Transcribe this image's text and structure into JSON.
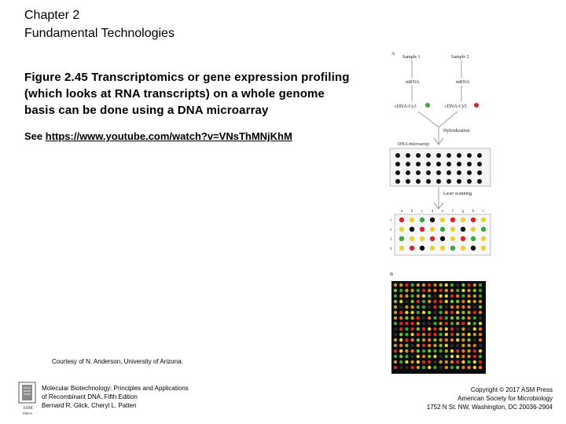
{
  "header": {
    "line1": "Chapter 2",
    "line2": "Fundamental Technologies"
  },
  "caption": "Figure 2.45 Transcriptomics or gene expression profiling (which looks at RNA transcripts) on a whole genome basis can be done using a DNA microarray",
  "see": {
    "prefix": "See ",
    "link": "https://www.youtube.com/watch?v=VNsThMNjKhM"
  },
  "courtesy": "Courtesy of N. Anderson, University of Arizona.",
  "footer": {
    "book": [
      "Molecular Biotechnology: Principles and Applications",
      "of Recombinant DNA, Fifth Edition",
      "Bernard R. Glick, Cheryl L. Patten"
    ],
    "copyright": [
      "Copyright © 2017 ASM Press",
      "American Society for Microbiology",
      "1752 N St. NW, Washington, DC 20036-2904"
    ],
    "logo_text": [
      "ASM",
      "PRESS"
    ]
  },
  "figure": {
    "panel_a": "A",
    "panel_b": "B",
    "sample1": "Sample 1",
    "sample2": "Sample 2",
    "mrna1": "mRNA",
    "mrna2": "mRNA",
    "cdna1": "cDNA-Cy3",
    "cdna2": "cDNA-Cy5",
    "hybridization": "Hybridization",
    "dna_microarray": "DNA microarray",
    "laser_scanning": "Laser scanning",
    "columns": [
      "a",
      "b",
      "c",
      "d",
      "e",
      "f",
      "g",
      "h",
      "i"
    ],
    "rows": [
      "1",
      "2",
      "3",
      "4"
    ],
    "scan_colors": [
      [
        "red",
        "yellow",
        "green",
        "black",
        "yellow",
        "red",
        "yellow",
        "red",
        "yellow"
      ],
      [
        "yellow",
        "black",
        "red",
        "yellow",
        "green",
        "yellow",
        "black",
        "yellow",
        "green"
      ],
      [
        "green",
        "yellow",
        "yellow",
        "red",
        "black",
        "yellow",
        "red",
        "green",
        "yellow"
      ],
      [
        "yellow",
        "red",
        "black",
        "yellow",
        "yellow",
        "green",
        "yellow",
        "black",
        "yellow"
      ]
    ],
    "color_map": {
      "red": "#d9262c",
      "green": "#3fa53f",
      "yellow": "#e6d23a",
      "black": "#111111",
      "cy3": "#3fa53f",
      "cy5": "#d9262c"
    }
  }
}
